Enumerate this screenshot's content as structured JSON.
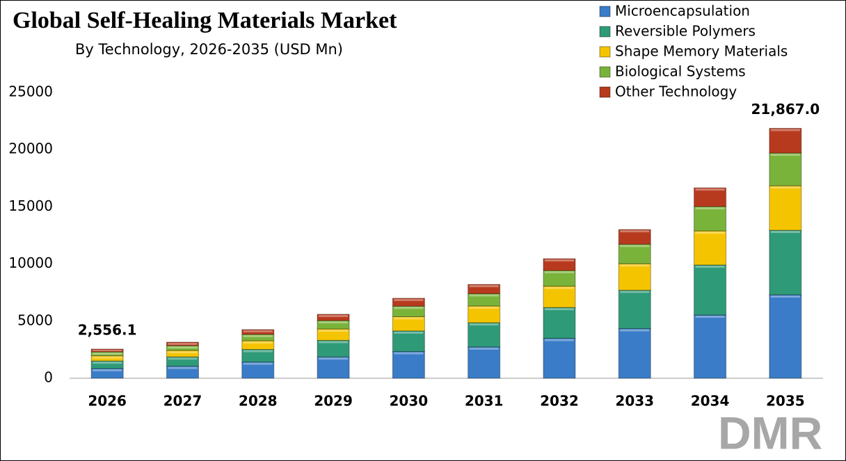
{
  "chart_data": {
    "type": "stacked_bar",
    "title": "Global Self-Healing Materials Market",
    "subtitle": "By Technology, 2026-2035 (USD Mn)",
    "logo": "DMR",
    "categories": [
      "2026",
      "2027",
      "2028",
      "2029",
      "2030",
      "2031",
      "2032",
      "2033",
      "2034",
      "2035"
    ],
    "series": [
      {
        "name": "Microencapsulation",
        "color": "#3a7cc7",
        "values": [
          854,
          1055,
          1423,
          1870,
          2338,
          2742,
          3494,
          4345,
          5530,
          7300
        ]
      },
      {
        "name": "Reversible Polymers",
        "color": "#2e9a78",
        "values": [
          660,
          815,
          1099,
          1445,
          1806,
          2118,
          2699,
          3357,
          4380,
          5650
        ]
      },
      {
        "name": "Shape Memory Materials",
        "color": "#f5c400",
        "values": [
          455,
          562,
          758,
          997,
          1246,
          1461,
          1862,
          2316,
          2980,
          3890
        ]
      },
      {
        "name": "Biological Systems",
        "color": "#7ab33a",
        "values": [
          335,
          414,
          558,
          734,
          917,
          1076,
          1370,
          1704,
          2130,
          2860
        ]
      },
      {
        "name": "Other Technology",
        "color": "#b83a1e",
        "values": [
          252.1,
          314,
          422,
          554,
          693,
          813,
          1035,
          1288,
          1640,
          2167
        ]
      }
    ],
    "annotations": [
      {
        "category_index": 0,
        "value": 2556.1,
        "label": "2,556.1"
      },
      {
        "category_index": 9,
        "value": 21867.0,
        "label": "21,867.0"
      }
    ],
    "ylim": [
      0,
      25000
    ],
    "yticks": [
      0,
      5000,
      10000,
      15000,
      20000,
      25000
    ],
    "grid": false,
    "legend": "top-right"
  }
}
